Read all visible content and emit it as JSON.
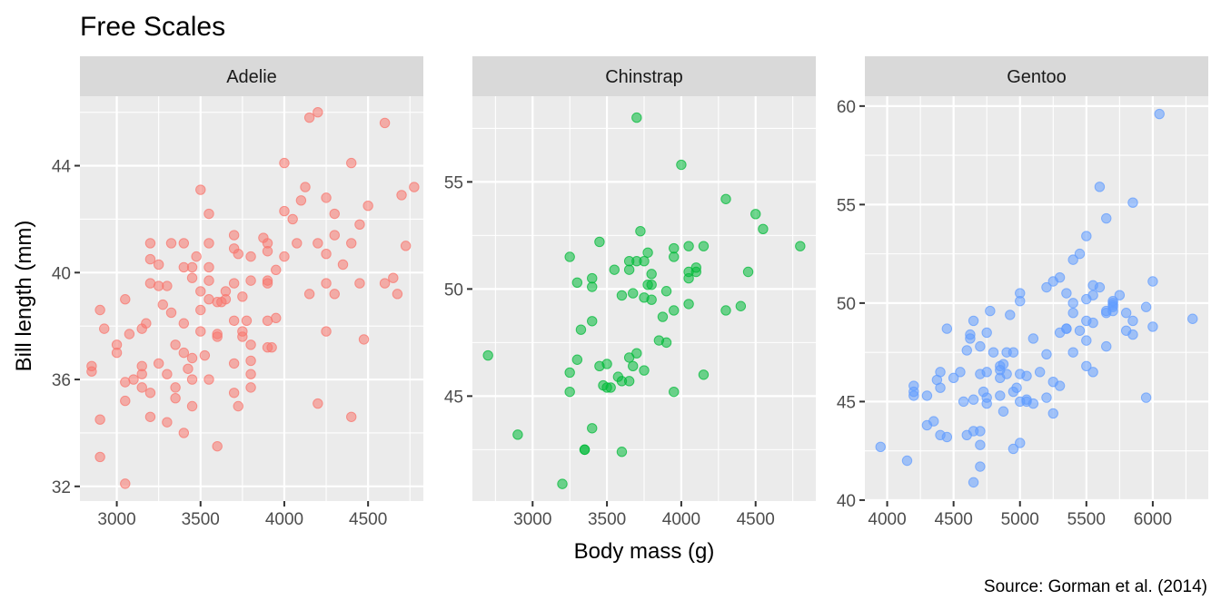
{
  "title": "Free Scales",
  "caption": "Source: Gorman et al. (2014)",
  "chart_data": {
    "type": "scatter",
    "title": "Free Scales",
    "xlabel": "Body mass (g)",
    "ylabel": "Bill length (mm)",
    "grid": true,
    "legend": "none",
    "facets": [
      {
        "name": "Adelie",
        "color": "#F8766D",
        "xlim": [
          2780,
          4830
        ],
        "ylim": [
          31.45,
          46.6
        ],
        "xticks": [
          3000,
          3500,
          4000,
          4500
        ],
        "yticks": [
          32,
          36,
          40,
          44
        ],
        "points": [
          [
            2850,
            36.5
          ],
          [
            2850,
            36.3
          ],
          [
            2900,
            38.6
          ],
          [
            2900,
            34.5
          ],
          [
            2900,
            33.1
          ],
          [
            2925,
            37.9
          ],
          [
            3000,
            37.3
          ],
          [
            3000,
            37.0
          ],
          [
            3050,
            39.0
          ],
          [
            3050,
            35.9
          ],
          [
            3050,
            35.2
          ],
          [
            3050,
            32.1
          ],
          [
            3075,
            37.7
          ],
          [
            3100,
            36.0
          ],
          [
            3150,
            36.5
          ],
          [
            3150,
            36.2
          ],
          [
            3150,
            35.7
          ],
          [
            3150,
            37.9
          ],
          [
            3175,
            38.1
          ],
          [
            3200,
            41.1
          ],
          [
            3200,
            40.5
          ],
          [
            3200,
            39.6
          ],
          [
            3200,
            35.5
          ],
          [
            3200,
            34.6
          ],
          [
            3250,
            40.3
          ],
          [
            3250,
            39.5
          ],
          [
            3250,
            36.6
          ],
          [
            3275,
            38.8
          ],
          [
            3300,
            39.5
          ],
          [
            3300,
            36.2
          ],
          [
            3300,
            34.4
          ],
          [
            3325,
            41.1
          ],
          [
            3325,
            38.5
          ],
          [
            3350,
            37.3
          ],
          [
            3350,
            35.7
          ],
          [
            3350,
            35.3
          ],
          [
            3400,
            41.1
          ],
          [
            3400,
            40.2
          ],
          [
            3400,
            38.1
          ],
          [
            3400,
            37.0
          ],
          [
            3400,
            34.0
          ],
          [
            3425,
            36.4
          ],
          [
            3450,
            40.2
          ],
          [
            3450,
            39.8
          ],
          [
            3450,
            36.8
          ],
          [
            3450,
            36.0
          ],
          [
            3450,
            35.0
          ],
          [
            3475,
            40.6
          ],
          [
            3500,
            43.1
          ],
          [
            3500,
            39.3
          ],
          [
            3500,
            38.6
          ],
          [
            3500,
            37.8
          ],
          [
            3525,
            36.9
          ],
          [
            3550,
            42.2
          ],
          [
            3550,
            41.1
          ],
          [
            3550,
            40.2
          ],
          [
            3550,
            39.7
          ],
          [
            3550,
            39.0
          ],
          [
            3550,
            36.0
          ],
          [
            3600,
            37.7
          ],
          [
            3600,
            37.6
          ],
          [
            3600,
            38.9
          ],
          [
            3600,
            33.5
          ],
          [
            3625,
            38.9
          ],
          [
            3650,
            39.3
          ],
          [
            3650,
            39.0
          ],
          [
            3700,
            41.4
          ],
          [
            3700,
            40.9
          ],
          [
            3700,
            39.6
          ],
          [
            3700,
            38.2
          ],
          [
            3700,
            36.6
          ],
          [
            3700,
            35.5
          ],
          [
            3725,
            40.7
          ],
          [
            3725,
            35.0
          ],
          [
            3750,
            37.8
          ],
          [
            3750,
            37.6
          ],
          [
            3750,
            39.1
          ],
          [
            3775,
            38.2
          ],
          [
            3800,
            40.6
          ],
          [
            3800,
            39.7
          ],
          [
            3800,
            36.7
          ],
          [
            3800,
            36.2
          ],
          [
            3800,
            35.7
          ],
          [
            3800,
            37.3
          ],
          [
            3875,
            41.3
          ],
          [
            3900,
            41.1
          ],
          [
            3900,
            40.8
          ],
          [
            3900,
            39.7
          ],
          [
            3900,
            39.6
          ],
          [
            3900,
            38.2
          ],
          [
            3900,
            37.2
          ],
          [
            3925,
            37.2
          ],
          [
            3950,
            40.1
          ],
          [
            3950,
            38.3
          ],
          [
            4000,
            44.1
          ],
          [
            4000,
            42.3
          ],
          [
            4000,
            40.6
          ],
          [
            4050,
            42.0
          ],
          [
            4075,
            41.1
          ],
          [
            4100,
            42.7
          ],
          [
            4125,
            43.2
          ],
          [
            4150,
            45.8
          ],
          [
            4150,
            39.2
          ],
          [
            4200,
            46.0
          ],
          [
            4200,
            41.1
          ],
          [
            4200,
            35.1
          ],
          [
            4250,
            42.8
          ],
          [
            4250,
            40.7
          ],
          [
            4250,
            39.6
          ],
          [
            4250,
            37.8
          ],
          [
            4300,
            42.2
          ],
          [
            4300,
            41.4
          ],
          [
            4300,
            39.2
          ],
          [
            4350,
            40.3
          ],
          [
            4400,
            44.1
          ],
          [
            4400,
            41.1
          ],
          [
            4400,
            34.6
          ],
          [
            4450,
            41.8
          ],
          [
            4450,
            39.6
          ],
          [
            4475,
            37.5
          ],
          [
            4500,
            42.5
          ],
          [
            4600,
            45.6
          ],
          [
            4600,
            39.6
          ],
          [
            4650,
            39.8
          ],
          [
            4675,
            39.2
          ],
          [
            4700,
            42.9
          ],
          [
            4725,
            41.0
          ],
          [
            4775,
            43.2
          ]
        ]
      },
      {
        "name": "Chinstrap",
        "color": "#00BA38",
        "xlim": [
          2595,
          4905
        ],
        "ylim": [
          40.1,
          59.0
        ],
        "xticks": [
          3000,
          3500,
          4000,
          4500
        ],
        "yticks": [
          45,
          50,
          55
        ],
        "points": [
          [
            2700,
            46.9
          ],
          [
            2900,
            43.2
          ],
          [
            3200,
            40.9
          ],
          [
            3250,
            51.5
          ],
          [
            3250,
            46.1
          ],
          [
            3250,
            45.2
          ],
          [
            3300,
            50.3
          ],
          [
            3300,
            46.7
          ],
          [
            3325,
            48.1
          ],
          [
            3350,
            42.5
          ],
          [
            3350,
            42.5
          ],
          [
            3400,
            50.5
          ],
          [
            3400,
            50.1
          ],
          [
            3400,
            48.5
          ],
          [
            3400,
            43.5
          ],
          [
            3450,
            52.2
          ],
          [
            3450,
            46.4
          ],
          [
            3475,
            45.5
          ],
          [
            3500,
            46.5
          ],
          [
            3500,
            45.4
          ],
          [
            3525,
            45.4
          ],
          [
            3550,
            50.9
          ],
          [
            3575,
            45.9
          ],
          [
            3600,
            49.7
          ],
          [
            3600,
            45.7
          ],
          [
            3600,
            42.4
          ],
          [
            3650,
            51.3
          ],
          [
            3650,
            50.9
          ],
          [
            3650,
            46.8
          ],
          [
            3650,
            45.7
          ],
          [
            3675,
            49.8
          ],
          [
            3675,
            46.4
          ],
          [
            3700,
            58.0
          ],
          [
            3700,
            51.3
          ],
          [
            3700,
            47.0
          ],
          [
            3725,
            52.7
          ],
          [
            3750,
            51.3
          ],
          [
            3750,
            49.6
          ],
          [
            3750,
            46.2
          ],
          [
            3775,
            51.7
          ],
          [
            3775,
            50.2
          ],
          [
            3800,
            50.2
          ],
          [
            3800,
            49.5
          ],
          [
            3800,
            50.7
          ],
          [
            3850,
            47.6
          ],
          [
            3875,
            48.7
          ],
          [
            3900,
            49.9
          ],
          [
            3900,
            47.5
          ],
          [
            3950,
            51.9
          ],
          [
            3950,
            51.5
          ],
          [
            3950,
            49.0
          ],
          [
            3950,
            45.2
          ],
          [
            4000,
            55.8
          ],
          [
            4050,
            52.0
          ],
          [
            4050,
            50.8
          ],
          [
            4050,
            50.5
          ],
          [
            4050,
            49.3
          ],
          [
            4100,
            51.0
          ],
          [
            4100,
            50.8
          ],
          [
            4150,
            52.0
          ],
          [
            4150,
            46.0
          ],
          [
            4300,
            54.2
          ],
          [
            4300,
            49.0
          ],
          [
            4400,
            49.2
          ],
          [
            4450,
            50.8
          ],
          [
            4500,
            53.5
          ],
          [
            4550,
            52.8
          ],
          [
            4800,
            52.0
          ]
        ]
      },
      {
        "name": "Gentoo",
        "color": "#619CFF",
        "xlim": [
          3832,
          6418
        ],
        "ylim": [
          39.95,
          60.5
        ],
        "xticks": [
          4000,
          4500,
          5000,
          5500,
          6000
        ],
        "yticks": [
          40,
          45,
          50,
          55,
          60
        ],
        "points": [
          [
            3950,
            42.7
          ],
          [
            4150,
            42.0
          ],
          [
            4200,
            45.8
          ],
          [
            4200,
            45.5
          ],
          [
            4200,
            45.3
          ],
          [
            4300,
            45.3
          ],
          [
            4300,
            43.8
          ],
          [
            4350,
            44.0
          ],
          [
            4375,
            46.1
          ],
          [
            4400,
            46.5
          ],
          [
            4400,
            45.7
          ],
          [
            4400,
            43.3
          ],
          [
            4450,
            48.7
          ],
          [
            4450,
            43.2
          ],
          [
            4500,
            46.2
          ],
          [
            4550,
            46.5
          ],
          [
            4575,
            45.0
          ],
          [
            4600,
            47.6
          ],
          [
            4600,
            43.3
          ],
          [
            4625,
            48.4
          ],
          [
            4625,
            48.2
          ],
          [
            4650,
            49.1
          ],
          [
            4650,
            45.1
          ],
          [
            4650,
            43.5
          ],
          [
            4650,
            40.9
          ],
          [
            4700,
            47.8
          ],
          [
            4700,
            46.4
          ],
          [
            4700,
            43.5
          ],
          [
            4700,
            41.7
          ],
          [
            4700,
            42.8
          ],
          [
            4725,
            45.5
          ],
          [
            4750,
            48.5
          ],
          [
            4750,
            46.5
          ],
          [
            4750,
            45.2
          ],
          [
            4750,
            44.9
          ],
          [
            4775,
            49.6
          ],
          [
            4800,
            47.5
          ],
          [
            4850,
            46.8
          ],
          [
            4850,
            46.6
          ],
          [
            4850,
            46.2
          ],
          [
            4850,
            45.3
          ],
          [
            4875,
            46.9
          ],
          [
            4875,
            44.5
          ],
          [
            4900,
            47.5
          ],
          [
            4900,
            46.4
          ],
          [
            4925,
            49.4
          ],
          [
            4950,
            47.5
          ],
          [
            4950,
            45.5
          ],
          [
            4950,
            42.6
          ],
          [
            4975,
            45.7
          ],
          [
            5000,
            50.5
          ],
          [
            5000,
            50.1
          ],
          [
            5000,
            46.4
          ],
          [
            5000,
            45.0
          ],
          [
            5000,
            42.9
          ],
          [
            5050,
            46.3
          ],
          [
            5050,
            45.1
          ],
          [
            5050,
            45.0
          ],
          [
            5100,
            48.2
          ],
          [
            5100,
            44.9
          ],
          [
            5150,
            46.5
          ],
          [
            5200,
            50.8
          ],
          [
            5200,
            47.4
          ],
          [
            5200,
            45.2
          ],
          [
            5250,
            51.1
          ],
          [
            5250,
            46.0
          ],
          [
            5250,
            44.4
          ],
          [
            5300,
            51.3
          ],
          [
            5300,
            48.5
          ],
          [
            5300,
            45.8
          ],
          [
            5350,
            50.5
          ],
          [
            5350,
            48.7
          ],
          [
            5350,
            48.7
          ],
          [
            5400,
            52.2
          ],
          [
            5400,
            50.0
          ],
          [
            5400,
            49.5
          ],
          [
            5400,
            47.5
          ],
          [
            5450,
            52.5
          ],
          [
            5450,
            48.6
          ],
          [
            5500,
            53.4
          ],
          [
            5500,
            50.2
          ],
          [
            5500,
            49.1
          ],
          [
            5500,
            48.1
          ],
          [
            5500,
            46.8
          ],
          [
            5550,
            50.9
          ],
          [
            5550,
            50.4
          ],
          [
            5550,
            49.0
          ],
          [
            5550,
            46.5
          ],
          [
            5600,
            55.9
          ],
          [
            5600,
            50.8
          ],
          [
            5650,
            54.3
          ],
          [
            5650,
            49.6
          ],
          [
            5650,
            47.8
          ],
          [
            5650,
            49.5
          ],
          [
            5700,
            50.1
          ],
          [
            5700,
            50.0
          ],
          [
            5700,
            49.8
          ],
          [
            5700,
            49.6
          ],
          [
            5700,
            49.9
          ],
          [
            5750,
            50.4
          ],
          [
            5800,
            49.5
          ],
          [
            5800,
            48.6
          ],
          [
            5850,
            55.1
          ],
          [
            5850,
            49.1
          ],
          [
            5850,
            48.4
          ],
          [
            5950,
            49.8
          ],
          [
            5950,
            45.2
          ],
          [
            6000,
            51.1
          ],
          [
            6000,
            48.8
          ],
          [
            6050,
            59.6
          ],
          [
            6300,
            49.2
          ]
        ]
      }
    ]
  }
}
